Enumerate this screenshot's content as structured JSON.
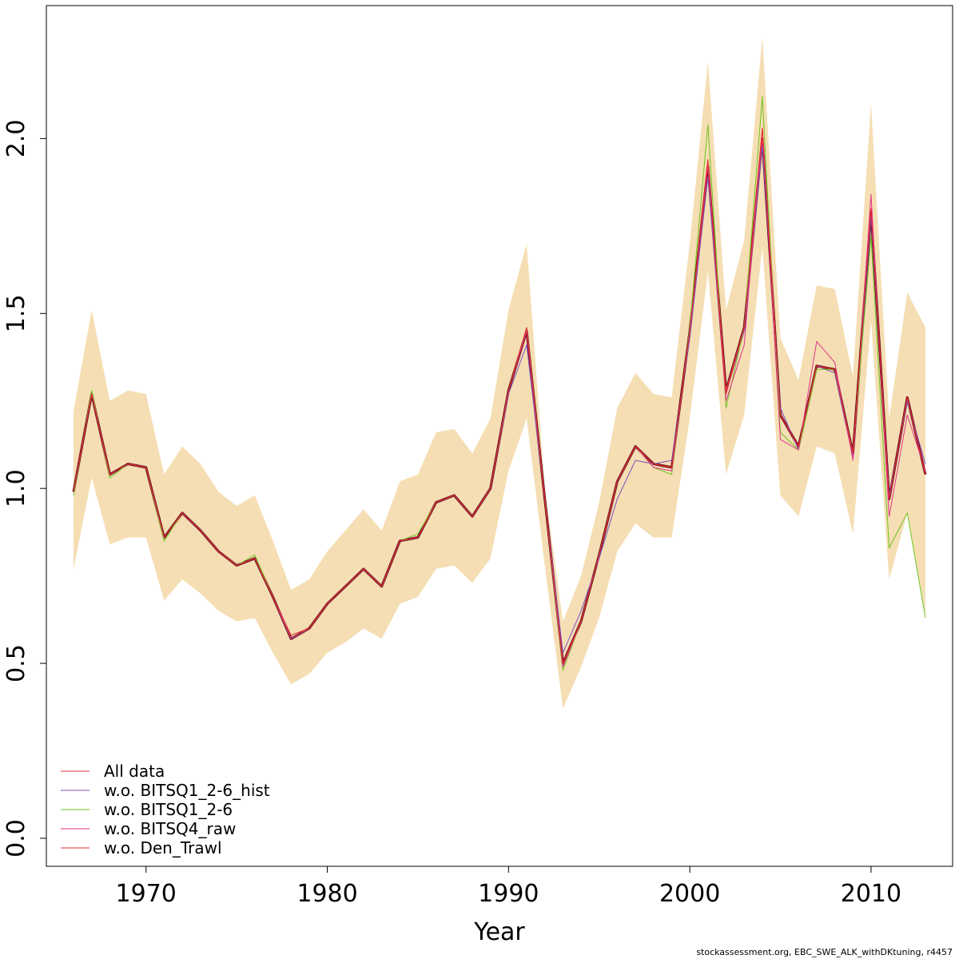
{
  "chart_data": {
    "type": "line",
    "title": "",
    "xlabel": "Year",
    "ylabel": "",
    "xlim": [
      1964.5,
      2014.5
    ],
    "ylim": [
      -0.08,
      2.38
    ],
    "grid": false,
    "x_ticks": [
      1970,
      1980,
      1990,
      2000,
      2010
    ],
    "x_tick_labels": [
      "1970",
      "1980",
      "1990",
      "2000",
      "2010"
    ],
    "y_ticks": [
      0.0,
      0.5,
      1.0,
      1.5,
      2.0
    ],
    "y_tick_labels": [
      "0.0",
      "0.5",
      "1.0",
      "1.5",
      "2.0"
    ],
    "confidence_band_color": "#F5DEB3",
    "x": [
      1966,
      1967,
      1968,
      1969,
      1970,
      1971,
      1972,
      1973,
      1974,
      1975,
      1976,
      1977,
      1978,
      1979,
      1980,
      1981,
      1982,
      1983,
      1984,
      1985,
      1986,
      1987,
      1988,
      1989,
      1990,
      1991,
      1992,
      1993,
      1994,
      1995,
      1996,
      1997,
      1998,
      1999,
      2000,
      2001,
      2002,
      2003,
      2004,
      2005,
      2006,
      2007,
      2008,
      2009,
      2010,
      2011,
      2012,
      2013
    ],
    "band_upper": [
      1.22,
      1.51,
      1.25,
      1.28,
      1.27,
      1.04,
      1.12,
      1.07,
      0.99,
      0.95,
      0.98,
      0.85,
      0.71,
      0.74,
      0.82,
      0.88,
      0.94,
      0.88,
      1.02,
      1.04,
      1.16,
      1.17,
      1.1,
      1.2,
      1.51,
      1.7,
      1.0,
      0.62,
      0.75,
      0.96,
      1.23,
      1.33,
      1.27,
      1.26,
      1.7,
      2.22,
      1.51,
      1.71,
      2.29,
      1.43,
      1.31,
      1.58,
      1.57,
      1.32,
      2.1,
      1.2,
      1.56,
      1.46
    ],
    "band_lower": [
      0.77,
      1.03,
      0.84,
      0.86,
      0.86,
      0.68,
      0.74,
      0.7,
      0.65,
      0.62,
      0.63,
      0.53,
      0.44,
      0.47,
      0.53,
      0.56,
      0.6,
      0.57,
      0.67,
      0.69,
      0.77,
      0.78,
      0.73,
      0.8,
      1.05,
      1.2,
      0.78,
      0.37,
      0.49,
      0.63,
      0.82,
      0.9,
      0.86,
      0.86,
      1.2,
      1.62,
      1.04,
      1.21,
      1.69,
      0.98,
      0.92,
      1.12,
      1.1,
      0.87,
      1.48,
      0.74,
      0.93,
      0.64
    ],
    "series": [
      {
        "name": "All data",
        "color": "#E8383D",
        "width": 1.2,
        "values": [
          0.99,
          1.27,
          1.04,
          1.07,
          1.06,
          0.86,
          0.93,
          0.88,
          0.82,
          0.78,
          0.8,
          0.69,
          0.57,
          0.6,
          0.67,
          0.72,
          0.77,
          0.72,
          0.85,
          0.86,
          0.96,
          0.98,
          0.92,
          1.0,
          1.28,
          1.45,
          0.97,
          0.5,
          0.62,
          0.81,
          1.02,
          1.12,
          1.07,
          1.06,
          1.45,
          1.92,
          1.28,
          1.46,
          2.0,
          1.21,
          1.12,
          1.35,
          1.34,
          1.1,
          1.79,
          0.97,
          1.26,
          1.04
        ]
      },
      {
        "name": "w.o. BITSQ1_2-6_hist",
        "color": "#7B4FBF",
        "width": 1,
        "values": [
          0.99,
          1.27,
          1.04,
          1.07,
          1.06,
          0.86,
          0.93,
          0.88,
          0.82,
          0.78,
          0.8,
          0.69,
          0.57,
          0.6,
          0.67,
          0.72,
          0.77,
          0.72,
          0.85,
          0.86,
          0.96,
          0.98,
          0.92,
          1.0,
          1.27,
          1.41,
          0.97,
          0.53,
          0.65,
          0.8,
          0.97,
          1.08,
          1.07,
          1.08,
          1.43,
          1.89,
          1.27,
          1.45,
          1.98,
          1.23,
          1.11,
          1.35,
          1.33,
          1.09,
          1.78,
          0.98,
          1.25,
          1.07
        ]
      },
      {
        "name": "w.o. BITSQ1_2-6",
        "color": "#6EC41D",
        "width": 1,
        "values": [
          0.98,
          1.28,
          1.03,
          1.07,
          1.06,
          0.85,
          0.93,
          0.88,
          0.82,
          0.78,
          0.81,
          0.69,
          0.57,
          0.6,
          0.67,
          0.72,
          0.77,
          0.72,
          0.85,
          0.87,
          0.96,
          0.98,
          0.92,
          1.0,
          1.28,
          1.46,
          0.97,
          0.48,
          0.62,
          0.81,
          1.02,
          1.12,
          1.06,
          1.04,
          1.46,
          2.04,
          1.23,
          1.46,
          2.12,
          1.16,
          1.11,
          1.34,
          1.34,
          1.1,
          1.72,
          0.83,
          0.93,
          0.63
        ]
      },
      {
        "name": "w.o. BITSQ4_raw",
        "color": "#E0338A",
        "width": 1,
        "values": [
          0.99,
          1.27,
          1.04,
          1.07,
          1.06,
          0.86,
          0.93,
          0.88,
          0.82,
          0.78,
          0.8,
          0.69,
          0.57,
          0.6,
          0.67,
          0.72,
          0.77,
          0.72,
          0.85,
          0.86,
          0.96,
          0.98,
          0.92,
          1.0,
          1.28,
          1.45,
          0.97,
          0.49,
          0.62,
          0.81,
          1.02,
          1.12,
          1.06,
          1.05,
          1.45,
          1.93,
          1.25,
          1.41,
          2.03,
          1.14,
          1.11,
          1.42,
          1.36,
          1.08,
          1.84,
          0.92,
          1.21,
          1.05
        ]
      },
      {
        "name": "w.o. Den_Trawl",
        "color": "#E8282D",
        "width": 1,
        "values": [
          0.99,
          1.27,
          1.04,
          1.07,
          1.06,
          0.86,
          0.93,
          0.88,
          0.82,
          0.78,
          0.8,
          0.69,
          0.58,
          0.6,
          0.67,
          0.72,
          0.77,
          0.72,
          0.85,
          0.86,
          0.96,
          0.98,
          0.92,
          1.0,
          1.28,
          1.46,
          0.97,
          0.5,
          0.62,
          0.81,
          1.02,
          1.12,
          1.07,
          1.06,
          1.45,
          1.94,
          1.27,
          1.46,
          2.03,
          1.21,
          1.12,
          1.35,
          1.34,
          1.1,
          1.8,
          0.97,
          1.26,
          1.04
        ]
      }
    ],
    "estimate": {
      "color": "#5A0A16",
      "width": 3,
      "values": [
        0.99,
        1.27,
        1.04,
        1.07,
        1.06,
        0.86,
        0.93,
        0.88,
        0.82,
        0.78,
        0.8,
        0.69,
        0.57,
        0.6,
        0.67,
        0.72,
        0.77,
        0.72,
        0.85,
        0.86,
        0.96,
        0.98,
        0.92,
        1.0,
        1.28,
        1.45,
        0.97,
        0.5,
        0.62,
        0.81,
        1.02,
        1.12,
        1.07,
        1.06,
        1.45,
        1.92,
        1.28,
        1.46,
        2.0,
        1.21,
        1.12,
        1.35,
        1.34,
        1.1,
        1.79,
        0.97,
        1.26,
        1.04
      ]
    },
    "legend": {
      "placement": "bottom-left"
    }
  },
  "footer_text": "stockassessment.org, EBC_SWE_ALK_withDKtuning, r4457"
}
